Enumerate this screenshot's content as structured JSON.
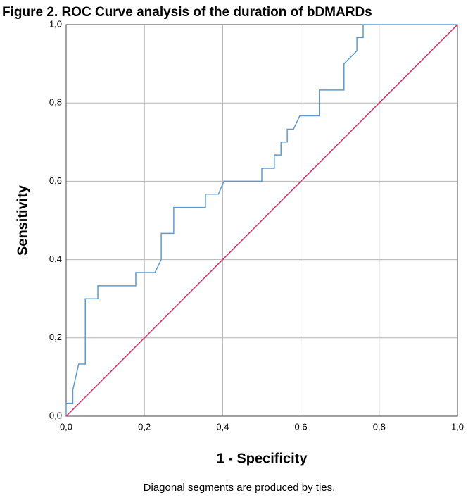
{
  "chart_data": {
    "type": "line",
    "title": "Figure 2. ROC Curve analysis of the duration of bDMARDs",
    "x_label": "1 - Specificity",
    "y_label": "Sensitivity",
    "footnote": "Diagonal segments are produced by ties.",
    "series": [
      {
        "color": "#5b9bd5",
        "x": [
          0,
          0,
          0.017,
          0.017,
          0.032,
          0.049,
          0.049,
          0.081,
          0.081,
          0.178,
          0.178,
          0.227,
          0.243,
          0.243,
          0.275,
          0.275,
          0.356,
          0.356,
          0.389,
          0.403,
          0.5,
          0.5,
          0.532,
          0.532,
          0.549,
          0.549,
          0.565,
          0.565,
          0.581,
          0.597,
          0.647,
          0.647,
          0.71,
          0.71,
          0.743,
          0.743,
          0.759,
          0.759,
          1
        ],
        "values": [
          0,
          0.033,
          0.033,
          0.067,
          0.133,
          0.133,
          0.3,
          0.3,
          0.333,
          0.333,
          0.367,
          0.367,
          0.4,
          0.467,
          0.467,
          0.533,
          0.533,
          0.567,
          0.567,
          0.6,
          0.6,
          0.633,
          0.633,
          0.667,
          0.667,
          0.7,
          0.7,
          0.733,
          0.733,
          0.767,
          0.767,
          0.833,
          0.833,
          0.9,
          0.933,
          0.967,
          0.967,
          1,
          1
        ]
      },
      {
        "color": "#e0245e",
        "x": [
          0,
          1
        ],
        "values": [
          0,
          1
        ]
      }
    ],
    "xlim": [
      0,
      1
    ],
    "ylim": [
      0,
      1
    ],
    "xticks": [
      {
        "value": 0,
        "label": "0,0"
      },
      {
        "value": 0.2,
        "label": "0,2"
      },
      {
        "value": 0.4,
        "label": "0,4"
      },
      {
        "value": 0.6,
        "label": "0,6"
      },
      {
        "value": 0.8,
        "label": "0,8"
      },
      {
        "value": 1,
        "label": "1,0"
      }
    ],
    "yticks": [
      {
        "value": 0,
        "label": "0,0"
      },
      {
        "value": 0.2,
        "label": "0,2"
      },
      {
        "value": 0.4,
        "label": "0,4"
      },
      {
        "value": 0.6,
        "label": "0,6"
      },
      {
        "value": 0.8,
        "label": "0,8"
      },
      {
        "value": 1,
        "label": "1,0"
      }
    ],
    "grid": true
  }
}
